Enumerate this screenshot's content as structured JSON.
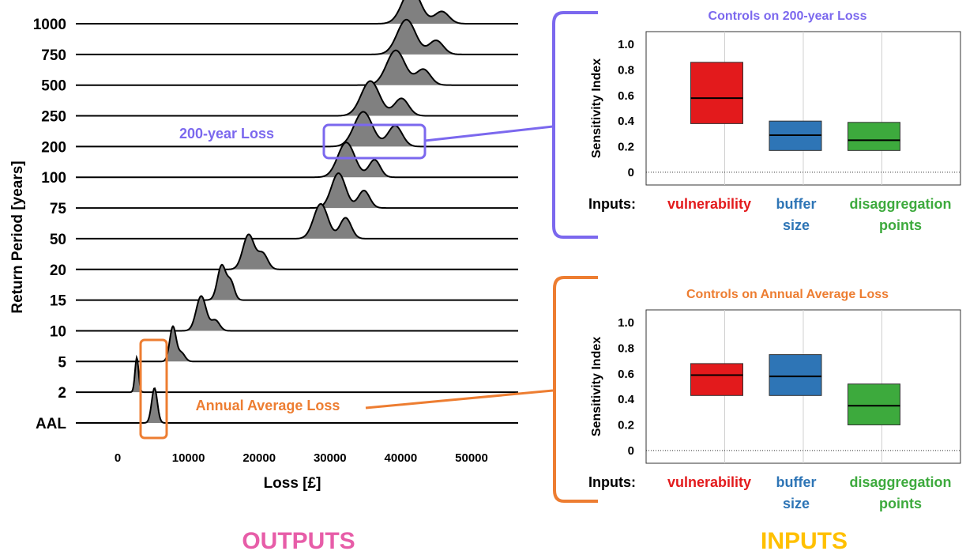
{
  "colors": {
    "purple": "#7b68ee",
    "orange": "#ed7d31",
    "red": "#e31a1c",
    "blue": "#2e75b6",
    "green": "#3daa3d",
    "pink": "#e75da8",
    "yellow": "#ffc000",
    "ridge_fill": "#808080"
  },
  "labels": {
    "outputs": "OUTPUTS",
    "inputs": "INPUTS",
    "callout_200": "200-year Loss",
    "callout_aal": "Annual Average Loss",
    "inputs_prefix": "Inputs:",
    "input_names": [
      {
        "line1": "vulnerability",
        "line2": "",
        "color": "red"
      },
      {
        "line1": "buffer",
        "line2": "size",
        "color": "blue"
      },
      {
        "line1": "disaggregation",
        "line2": "points",
        "color": "green"
      }
    ]
  },
  "chart_data": [
    {
      "type": "ridgeline",
      "xlabel": "Loss [£]",
      "ylabel": "Return Period [years]",
      "xlim": [
        -7000,
        56000
      ],
      "xticks": [
        0,
        10000,
        20000,
        30000,
        40000,
        50000
      ],
      "rows": [
        {
          "label": "AAL",
          "peaks": [
            [
              5200,
              1.0,
              400
            ]
          ]
        },
        {
          "label": "2",
          "peaks": [
            [
              2700,
              1.0,
              250
            ]
          ]
        },
        {
          "label": "5",
          "peaks": [
            [
              7800,
              1.0,
              450
            ],
            [
              9000,
              0.25,
              500
            ]
          ]
        },
        {
          "label": "10",
          "peaks": [
            [
              11800,
              1.0,
              700
            ],
            [
              13800,
              0.3,
              600
            ]
          ]
        },
        {
          "label": "15",
          "peaks": [
            [
              14700,
              1.0,
              600
            ],
            [
              16000,
              0.5,
              500
            ]
          ]
        },
        {
          "label": "20",
          "peaks": [
            [
              18500,
              1.0,
              800
            ],
            [
              20500,
              0.45,
              700
            ]
          ]
        },
        {
          "label": "50",
          "peaks": [
            [
              28700,
              1.0,
              1000
            ],
            [
              32200,
              0.6,
              800
            ]
          ]
        },
        {
          "label": "75",
          "peaks": [
            [
              31200,
              1.0,
              1000
            ],
            [
              34800,
              0.5,
              800
            ]
          ]
        },
        {
          "label": "100",
          "peaks": [
            [
              32300,
              1.0,
              1200
            ],
            [
              36300,
              0.5,
              800
            ]
          ]
        },
        {
          "label": "200",
          "peaks": [
            [
              34700,
              1.0,
              1300
            ],
            [
              39200,
              0.6,
              1000
            ]
          ]
        },
        {
          "label": "250",
          "peaks": [
            [
              35700,
              1.0,
              1300
            ],
            [
              40100,
              0.5,
              1000
            ]
          ]
        },
        {
          "label": "500",
          "peaks": [
            [
              39300,
              1.0,
              1300
            ],
            [
              43200,
              0.45,
              1000
            ]
          ]
        },
        {
          "label": "750",
          "peaks": [
            [
              40800,
              1.0,
              1300
            ],
            [
              45000,
              0.4,
              1000
            ]
          ]
        },
        {
          "label": "1000",
          "peaks": [
            [
              41500,
              1.0,
              1300
            ],
            [
              45800,
              0.35,
              1000
            ]
          ]
        }
      ]
    },
    {
      "type": "box",
      "title": "Controls on 200-year Loss",
      "ylabel": "Sensitivity Index",
      "ylim": [
        -0.1,
        1.1
      ],
      "yticks": [
        "0",
        "0.2",
        "0.4",
        "0.6",
        "0.8",
        "1.0"
      ],
      "boxes": [
        {
          "name": "vulnerability",
          "q1": 0.38,
          "median": 0.58,
          "q3": 0.86
        },
        {
          "name": "buffer size",
          "q1": 0.17,
          "median": 0.29,
          "q3": 0.4
        },
        {
          "name": "disaggregation points",
          "q1": 0.17,
          "median": 0.25,
          "q3": 0.39
        }
      ]
    },
    {
      "type": "box",
      "title": "Controls on Annual Average Loss",
      "ylabel": "Sensitivity Index",
      "ylim": [
        -0.1,
        1.1
      ],
      "yticks": [
        "0",
        "0.2",
        "0.4",
        "0.6",
        "0.8",
        "1.0"
      ],
      "boxes": [
        {
          "name": "vulnerability",
          "q1": 0.43,
          "median": 0.59,
          "q3": 0.68
        },
        {
          "name": "buffer size",
          "q1": 0.43,
          "median": 0.58,
          "q3": 0.75
        },
        {
          "name": "disaggregation points",
          "q1": 0.2,
          "median": 0.35,
          "q3": 0.52
        }
      ]
    }
  ]
}
